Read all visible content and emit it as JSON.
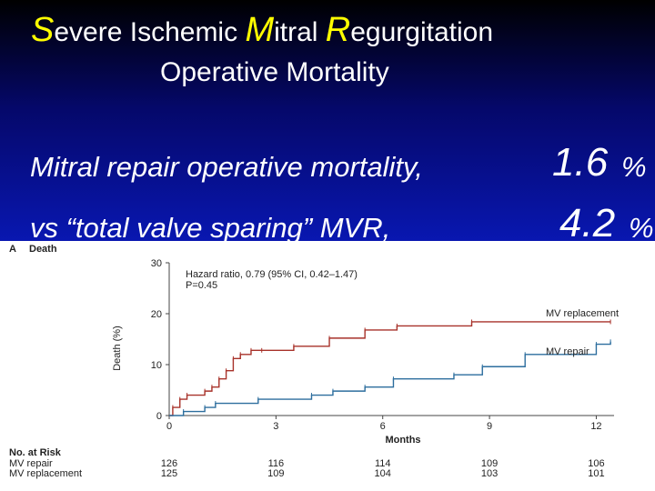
{
  "title": {
    "s": "S",
    "evere": "evere Ischemic ",
    "m": "M",
    "itral": "itral ",
    "r": "R",
    "egurg": "egurgitation"
  },
  "subtitle": "Operative Mortality",
  "stats": [
    {
      "label": "Mitral repair operative mortality,",
      "value": "1.6",
      "unit": "%"
    },
    {
      "label": "vs “total valve sparing” MVR,",
      "value": "4.2",
      "unit": "%"
    }
  ],
  "colors": {
    "repair": "#2d6e9e",
    "replacement": "#a8322a",
    "accent": "#ffff00"
  },
  "chart_data": {
    "type": "line",
    "panel_label": "A",
    "panel_title": "Death",
    "xlabel": "Months",
    "ylabel": "Death (%)",
    "xlim": [
      0,
      12.5
    ],
    "ylim": [
      0,
      30
    ],
    "xticks": [
      0,
      3,
      6,
      9,
      12
    ],
    "yticks": [
      0,
      10,
      20,
      30
    ],
    "annotation": [
      "Hazard ratio, 0.79 (95% CI, 0.42–1.47)",
      "P=0.45"
    ],
    "series": [
      {
        "name": "MV replacement",
        "x": [
          0,
          0.1,
          0.3,
          0.5,
          1.0,
          1.2,
          1.4,
          1.6,
          1.8,
          2.0,
          2.3,
          2.6,
          3.5,
          4.5,
          5.5,
          6.4,
          8.5,
          12.4
        ],
        "y": [
          0,
          1.6,
          3.2,
          4.0,
          4.8,
          5.6,
          7.2,
          8.8,
          11.2,
          12.0,
          12.8,
          12.8,
          13.6,
          15.2,
          16.8,
          17.6,
          18.4,
          18.4
        ]
      },
      {
        "name": "MV repair",
        "x": [
          0,
          0.4,
          1.0,
          1.3,
          2.5,
          4.0,
          4.6,
          5.5,
          6.3,
          8.0,
          8.8,
          10.0,
          12.0,
          12.4
        ],
        "y": [
          0,
          0.8,
          1.6,
          2.4,
          3.2,
          4.0,
          4.8,
          5.6,
          7.2,
          8.0,
          9.6,
          12.0,
          14.0,
          14.5
        ]
      }
    ],
    "risk_table": {
      "header": "No. at Risk",
      "rows": [
        {
          "label": "MV repair",
          "values": [
            "126",
            "116",
            "114",
            "109",
            "106"
          ]
        },
        {
          "label": "MV replacement",
          "values": [
            "125",
            "109",
            "104",
            "103",
            "101"
          ]
        }
      ]
    }
  }
}
